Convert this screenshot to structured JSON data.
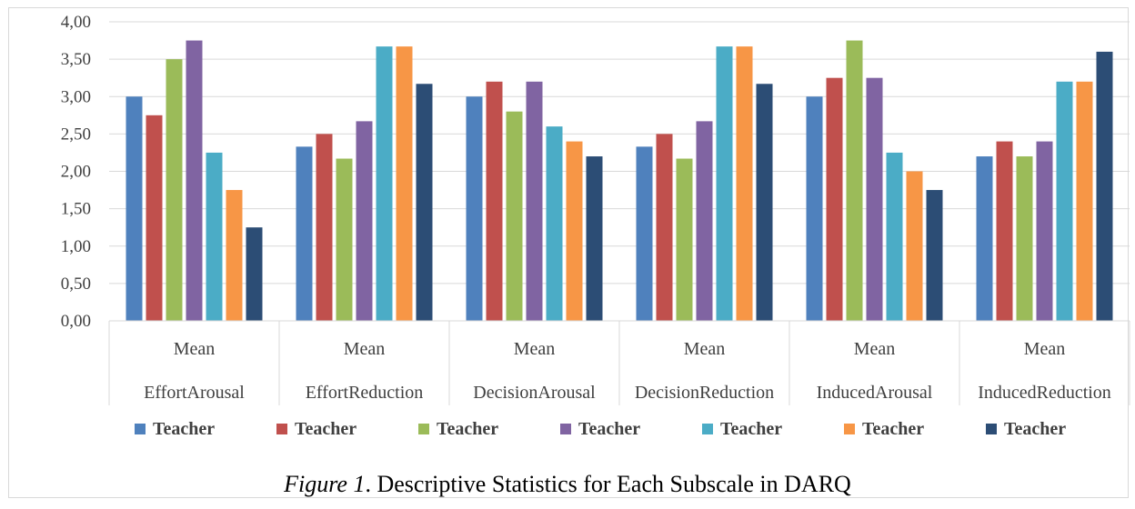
{
  "caption": {
    "lead": "Figure 1",
    "text": ". Descriptive Statistics for Each Subscale in DARQ"
  },
  "chart_data": {
    "type": "bar",
    "ylim": [
      0,
      4
    ],
    "yticks": [
      "0,00",
      "0,50",
      "1,00",
      "1,50",
      "2,00",
      "2,50",
      "3,00",
      "3,50",
      "4,00"
    ],
    "grid": true,
    "legend_position": "bottom",
    "categories": [
      {
        "top": "Mean",
        "bottom": "EffortArousal"
      },
      {
        "top": "Mean",
        "bottom": "EffortReduction"
      },
      {
        "top": "Mean",
        "bottom": "DecisionArousal"
      },
      {
        "top": "Mean",
        "bottom": "DecisionReduction"
      },
      {
        "top": "Mean",
        "bottom": "InducedArousal"
      },
      {
        "top": "Mean",
        "bottom": "InducedReduction"
      }
    ],
    "series": [
      {
        "name": "Teacher",
        "color": "#4f81bd",
        "values": [
          3.0,
          2.33,
          3.0,
          2.33,
          3.0,
          2.2
        ]
      },
      {
        "name": "Teacher",
        "color": "#c0504d",
        "values": [
          2.75,
          2.5,
          3.2,
          2.5,
          3.25,
          2.4
        ]
      },
      {
        "name": "Teacher",
        "color": "#9bbb59",
        "values": [
          3.5,
          2.17,
          2.8,
          2.17,
          3.75,
          2.2
        ]
      },
      {
        "name": "Teacher",
        "color": "#8064a2",
        "values": [
          3.75,
          2.67,
          3.2,
          2.67,
          3.25,
          2.4
        ]
      },
      {
        "name": "Teacher",
        "color": "#4bacc6",
        "values": [
          2.25,
          3.67,
          2.6,
          3.67,
          2.25,
          3.2
        ]
      },
      {
        "name": "Teacher",
        "color": "#f79646",
        "values": [
          1.75,
          3.67,
          2.4,
          3.67,
          2.0,
          3.2
        ]
      },
      {
        "name": "Teacher",
        "color": "#2c4d75",
        "values": [
          1.25,
          3.17,
          2.2,
          3.17,
          1.75,
          3.6
        ]
      }
    ]
  }
}
